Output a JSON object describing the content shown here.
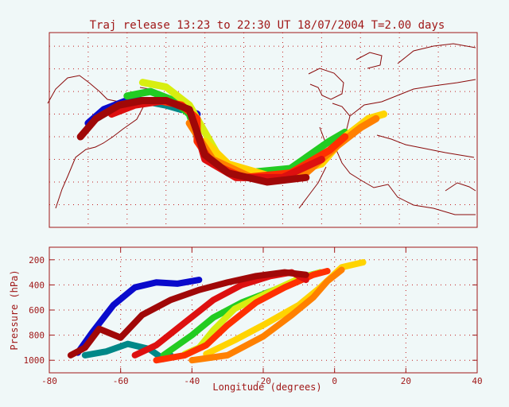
{
  "title": "Traj release 13:23 to 22:30 UT 18/07/2004    T=2.00 days",
  "colors": {
    "frame": "#a01818",
    "grid": "#c02020",
    "coast": "#8a0a0a",
    "background": "#f0f8f8"
  },
  "chart_data": [
    {
      "type": "map",
      "grid": true,
      "series": [
        {
          "color": "#0a0acc",
          "lonlat": [
            [
              -70,
              48
            ],
            [
              -66,
              51
            ],
            [
              -60,
              53
            ],
            [
              -54,
              53
            ],
            [
              -48,
              52
            ],
            [
              -42,
              50
            ]
          ]
        },
        {
          "color": "#008888",
          "lonlat": [
            [
              -68,
              49
            ],
            [
              -62,
              52
            ],
            [
              -56,
              53
            ],
            [
              -50,
              52
            ],
            [
              -46,
              51
            ]
          ]
        },
        {
          "color": "#22cc22",
          "lonlat": [
            [
              -60,
              54
            ],
            [
              -54,
              55
            ],
            [
              -48,
              53
            ],
            [
              -44,
              50
            ],
            [
              -42,
              45
            ],
            [
              -38,
              40
            ],
            [
              -30,
              37
            ],
            [
              -18,
              38
            ],
            [
              -8,
              44
            ],
            [
              -4,
              46
            ]
          ]
        },
        {
          "color": "#d8ee10",
          "lonlat": [
            [
              -56,
              57
            ],
            [
              -50,
              56
            ],
            [
              -44,
              52
            ],
            [
              -40,
              46
            ],
            [
              -36,
              40
            ],
            [
              -28,
              36
            ],
            [
              -16,
              37
            ],
            [
              -6,
              43
            ],
            [
              -2,
              46
            ]
          ]
        },
        {
          "color": "#ffd400",
          "lonlat": [
            [
              -40,
              44
            ],
            [
              -34,
              39
            ],
            [
              -22,
              36
            ],
            [
              -10,
              39
            ],
            [
              -4,
              45
            ],
            [
              2,
              49
            ],
            [
              6,
              50
            ]
          ]
        },
        {
          "color": "#ff8000",
          "lonlat": [
            [
              -44,
              48
            ],
            [
              -38,
              40
            ],
            [
              -28,
              36
            ],
            [
              -14,
              37
            ],
            [
              -6,
              43
            ],
            [
              0,
              47
            ],
            [
              4,
              49
            ]
          ]
        },
        {
          "color": "#ff3000",
          "lonlat": [
            [
              -52,
              53
            ],
            [
              -46,
              52
            ],
            [
              -42,
              49
            ],
            [
              -42,
              44
            ],
            [
              -38,
              39
            ],
            [
              -30,
              36
            ],
            [
              -18,
              37
            ],
            [
              -8,
              42
            ],
            [
              -4,
              45
            ]
          ]
        },
        {
          "color": "#dd1010",
          "lonlat": [
            [
              -64,
              50
            ],
            [
              -58,
              52
            ],
            [
              -50,
              53
            ],
            [
              -44,
              51
            ],
            [
              -42,
              46
            ],
            [
              -40,
              40
            ],
            [
              -32,
              36
            ],
            [
              -20,
              36
            ],
            [
              -10,
              40
            ]
          ]
        },
        {
          "color": "#a00808",
          "lonlat": [
            [
              -72,
              45
            ],
            [
              -68,
              49
            ],
            [
              -62,
              52
            ],
            [
              -56,
              53
            ],
            [
              -50,
              53
            ],
            [
              -44,
              51
            ],
            [
              -42,
              46
            ],
            [
              -40,
              41
            ],
            [
              -34,
              37
            ],
            [
              -24,
              35
            ],
            [
              -14,
              36
            ]
          ]
        }
      ]
    },
    {
      "type": "line",
      "xlabel": "Longitude  (degrees)",
      "ylabel": "Pressure  (hPa)",
      "xlim": [
        -80,
        40
      ],
      "ylim": [
        1100,
        100
      ],
      "xticks": [
        "-80",
        "-60",
        "-40",
        "-20",
        "0",
        "20",
        "40"
      ],
      "yticks": [
        "200",
        "400",
        "600",
        "800",
        "1000"
      ],
      "series": [
        {
          "color": "#0a0acc",
          "points": [
            [
              -72,
              940
            ],
            [
              -68,
              780
            ],
            [
              -62,
              560
            ],
            [
              -56,
              420
            ],
            [
              -50,
              380
            ],
            [
              -44,
              390
            ],
            [
              -38,
              360
            ]
          ]
        },
        {
          "color": "#008888",
          "points": [
            [
              -70,
              960
            ],
            [
              -64,
              930
            ],
            [
              -58,
              870
            ],
            [
              -52,
              910
            ],
            [
              -48,
              990
            ],
            [
              -46,
              960
            ]
          ]
        },
        {
          "color": "#22cc22",
          "points": [
            [
              -48,
              960
            ],
            [
              -44,
              880
            ],
            [
              -40,
              800
            ],
            [
              -34,
              660
            ],
            [
              -26,
              540
            ],
            [
              -16,
              430
            ],
            [
              -8,
              330
            ],
            [
              -4,
              300
            ]
          ]
        },
        {
          "color": "#d8ee10",
          "points": [
            [
              -42,
              950
            ],
            [
              -38,
              900
            ],
            [
              -34,
              760
            ],
            [
              -28,
              590
            ],
            [
              -20,
              480
            ],
            [
              -10,
              350
            ],
            [
              -4,
              300
            ]
          ]
        },
        {
          "color": "#ffd400",
          "points": [
            [
              -36,
              950
            ],
            [
              -28,
              840
            ],
            [
              -20,
              720
            ],
            [
              -10,
              560
            ],
            [
              -4,
              420
            ],
            [
              2,
              260
            ],
            [
              8,
              220
            ]
          ]
        },
        {
          "color": "#ff8000",
          "points": [
            [
              -40,
              1000
            ],
            [
              -30,
              960
            ],
            [
              -20,
              810
            ],
            [
              -12,
              640
            ],
            [
              -6,
              500
            ],
            [
              -2,
              370
            ],
            [
              2,
              280
            ]
          ]
        },
        {
          "color": "#ff3000",
          "points": [
            [
              -50,
              1000
            ],
            [
              -42,
              960
            ],
            [
              -36,
              880
            ],
            [
              -30,
              720
            ],
            [
              -22,
              540
            ],
            [
              -14,
              420
            ],
            [
              -6,
              320
            ],
            [
              -2,
              290
            ]
          ]
        },
        {
          "color": "#dd1010",
          "points": [
            [
              -56,
              960
            ],
            [
              -50,
              880
            ],
            [
              -42,
              700
            ],
            [
              -34,
              520
            ],
            [
              -26,
              400
            ],
            [
              -18,
              330
            ],
            [
              -12,
              300
            ],
            [
              -8,
              360
            ]
          ]
        },
        {
          "color": "#a00808",
          "points": [
            [
              -74,
              960
            ],
            [
              -70,
              900
            ],
            [
              -66,
              750
            ],
            [
              -60,
              820
            ],
            [
              -54,
              640
            ],
            [
              -46,
              520
            ],
            [
              -38,
              440
            ],
            [
              -30,
              380
            ],
            [
              -22,
              330
            ],
            [
              -14,
              300
            ],
            [
              -8,
              320
            ]
          ]
        }
      ]
    }
  ]
}
